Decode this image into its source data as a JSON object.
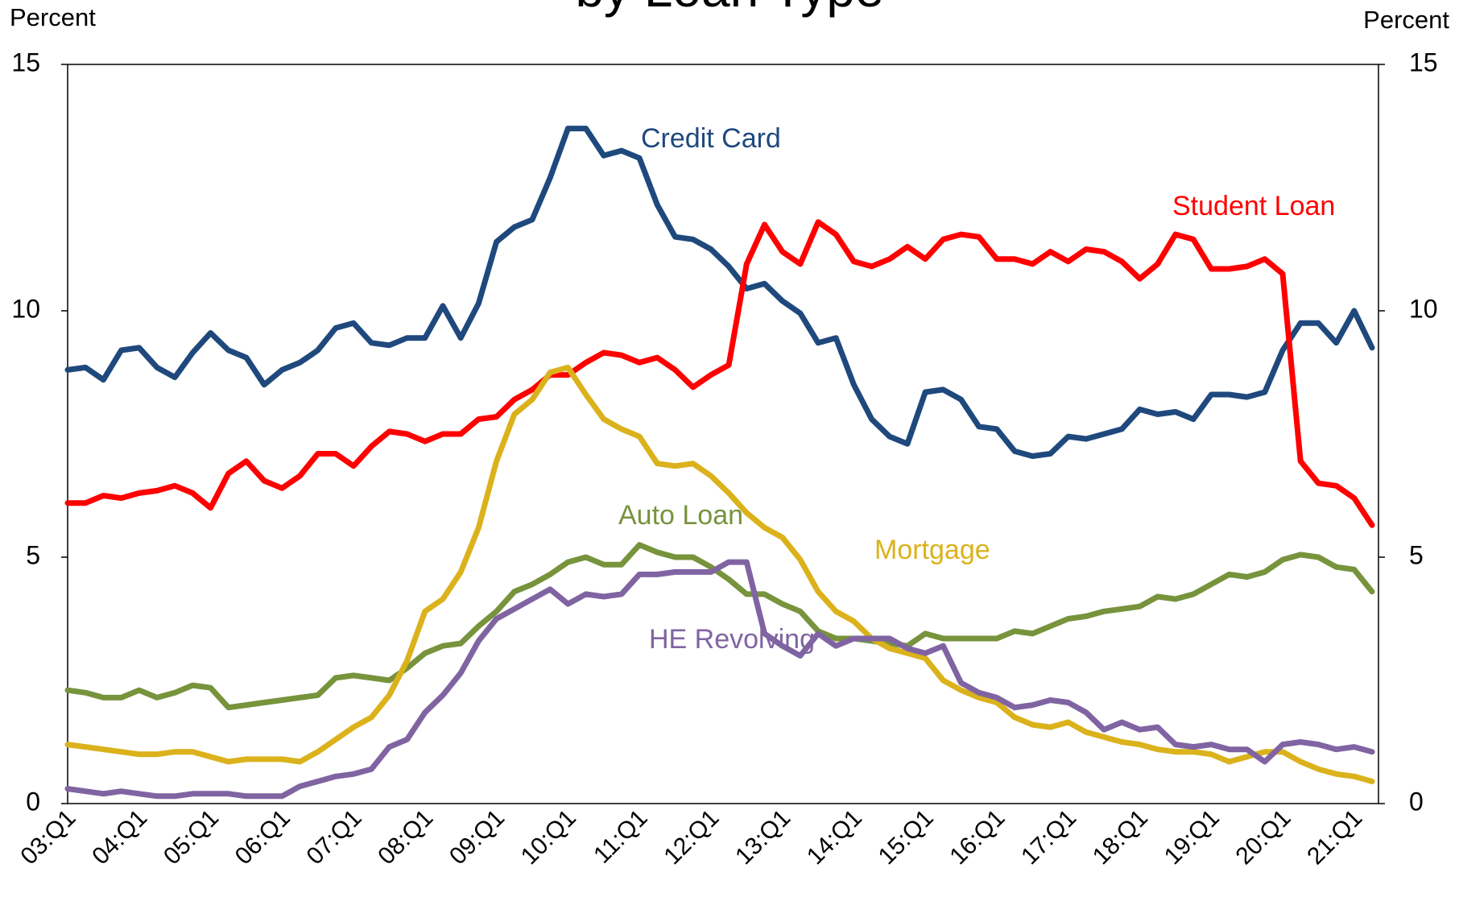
{
  "chart_data": {
    "type": "line",
    "title": "by Loan Type",
    "y_label": "Percent",
    "y2_label": "Percent",
    "categories": [
      "03:Q1",
      null,
      null,
      null,
      "04:Q1",
      null,
      null,
      null,
      "05:Q1",
      null,
      null,
      null,
      "06:Q1",
      null,
      null,
      null,
      "07:Q1",
      null,
      null,
      null,
      "08:Q1",
      null,
      null,
      null,
      "09:Q1",
      null,
      null,
      null,
      "10:Q1",
      null,
      null,
      null,
      "11:Q1",
      null,
      null,
      null,
      "12:Q1",
      null,
      null,
      null,
      "13:Q1",
      null,
      null,
      null,
      "14:Q1",
      null,
      null,
      null,
      "15:Q1",
      null,
      null,
      null,
      "16:Q1",
      null,
      null,
      null,
      "17:Q1",
      null,
      null,
      null,
      "18:Q1",
      null,
      null,
      null,
      "19:Q1",
      null,
      null,
      null,
      "20:Q1",
      null,
      null,
      null,
      "21:Q1",
      null
    ],
    "ylim": [
      0,
      15
    ],
    "yticks": [
      0,
      5,
      10,
      15
    ],
    "y2lim": [
      0,
      15
    ],
    "y2ticks": [
      0,
      5,
      10,
      15
    ],
    "grid": false,
    "series": [
      {
        "name": "Credit Card",
        "color": "#1f497d",
        "values": [
          8.8,
          8.85,
          8.6,
          9.2,
          9.25,
          8.85,
          8.65,
          9.15,
          9.55,
          9.2,
          9.05,
          8.5,
          8.8,
          8.95,
          9.2,
          9.65,
          9.75,
          9.35,
          9.3,
          9.45,
          9.45,
          10.1,
          9.45,
          10.15,
          11.4,
          11.7,
          11.85,
          12.7,
          13.7,
          13.7,
          13.15,
          13.25,
          13.1,
          12.15,
          11.5,
          11.45,
          11.25,
          10.9,
          10.45,
          10.55,
          10.2,
          9.95,
          9.35,
          9.45,
          8.5,
          7.8,
          7.45,
          7.3,
          8.35,
          8.4,
          8.2,
          7.65,
          7.6,
          7.15,
          7.05,
          7.1,
          7.45,
          7.4,
          7.5,
          7.6,
          8.0,
          7.9,
          7.95,
          7.8,
          8.3,
          8.3,
          8.25,
          8.35,
          9.2,
          9.75,
          9.75,
          9.35,
          10.0,
          9.25
        ]
      },
      {
        "name": "Student Loan",
        "color": "#ff0000",
        "values": [
          6.1,
          6.1,
          6.25,
          6.2,
          6.3,
          6.35,
          6.45,
          6.3,
          6.0,
          6.7,
          6.95,
          6.55,
          6.4,
          6.65,
          7.1,
          7.1,
          6.85,
          7.25,
          7.55,
          7.5,
          7.35,
          7.5,
          7.5,
          7.8,
          7.85,
          8.2,
          8.4,
          8.7,
          8.7,
          8.95,
          9.15,
          9.1,
          8.95,
          9.05,
          8.8,
          8.45,
          8.7,
          8.9,
          10.95,
          11.75,
          11.2,
          10.95,
          11.8,
          11.55,
          11.0,
          10.9,
          11.05,
          11.3,
          11.05,
          11.45,
          11.55,
          11.5,
          11.05,
          11.05,
          10.95,
          11.2,
          11.0,
          11.25,
          11.2,
          11.0,
          10.65,
          10.95,
          11.55,
          11.45,
          10.85,
          10.85,
          10.9,
          11.05,
          10.75,
          6.95,
          6.5,
          6.45,
          6.2,
          5.65
        ]
      },
      {
        "name": "Auto Loan",
        "color": "#77933c",
        "values": [
          2.3,
          2.25,
          2.15,
          2.15,
          2.3,
          2.15,
          2.25,
          2.4,
          2.35,
          1.95,
          2.0,
          2.05,
          2.1,
          2.15,
          2.2,
          2.55,
          2.6,
          2.55,
          2.5,
          2.75,
          3.05,
          3.2,
          3.25,
          3.6,
          3.9,
          4.3,
          4.45,
          4.65,
          4.9,
          5.0,
          4.85,
          4.85,
          5.25,
          5.1,
          5.0,
          5.0,
          4.8,
          4.55,
          4.25,
          4.25,
          4.05,
          3.9,
          3.5,
          3.35,
          3.35,
          3.3,
          3.25,
          3.2,
          3.45,
          3.35,
          3.35,
          3.35,
          3.35,
          3.5,
          3.45,
          3.6,
          3.75,
          3.8,
          3.9,
          3.95,
          4.0,
          4.2,
          4.15,
          4.25,
          4.45,
          4.65,
          4.6,
          4.7,
          4.95,
          5.05,
          5.0,
          4.8,
          4.75,
          4.3
        ]
      },
      {
        "name": "Mortgage",
        "color": "#dbb21c",
        "values": [
          1.2,
          1.15,
          1.1,
          1.05,
          1.0,
          1.0,
          1.05,
          1.05,
          0.95,
          0.85,
          0.9,
          0.9,
          0.9,
          0.85,
          1.05,
          1.3,
          1.55,
          1.75,
          2.2,
          2.9,
          3.9,
          4.15,
          4.7,
          5.6,
          6.95,
          7.9,
          8.2,
          8.75,
          8.85,
          8.3,
          7.8,
          7.6,
          7.45,
          6.9,
          6.85,
          6.9,
          6.65,
          6.3,
          5.9,
          5.6,
          5.4,
          4.95,
          4.3,
          3.9,
          3.7,
          3.35,
          3.15,
          3.05,
          2.95,
          2.5,
          2.3,
          2.15,
          2.05,
          1.75,
          1.6,
          1.55,
          1.65,
          1.45,
          1.35,
          1.25,
          1.2,
          1.1,
          1.05,
          1.05,
          1.0,
          0.85,
          0.95,
          1.05,
          1.05,
          0.85,
          0.7,
          0.6,
          0.55,
          0.45
        ]
      },
      {
        "name": "HE Revolving",
        "color": "#8064a2",
        "values": [
          0.3,
          0.25,
          0.2,
          0.25,
          0.2,
          0.15,
          0.15,
          0.2,
          0.2,
          0.2,
          0.15,
          0.15,
          0.15,
          0.35,
          0.45,
          0.55,
          0.6,
          0.7,
          1.15,
          1.3,
          1.85,
          2.2,
          2.65,
          3.3,
          3.75,
          3.95,
          4.15,
          4.35,
          4.05,
          4.25,
          4.2,
          4.25,
          4.65,
          4.65,
          4.7,
          4.7,
          4.7,
          4.9,
          4.9,
          3.45,
          3.2,
          3.0,
          3.45,
          3.2,
          3.35,
          3.35,
          3.35,
          3.15,
          3.05,
          3.2,
          2.45,
          2.25,
          2.15,
          1.95,
          2.0,
          2.1,
          2.05,
          1.85,
          1.5,
          1.65,
          1.5,
          1.55,
          1.2,
          1.15,
          1.2,
          1.1,
          1.1,
          0.85,
          1.2,
          1.25,
          1.2,
          1.1,
          1.15,
          1.05
        ]
      }
    ]
  }
}
